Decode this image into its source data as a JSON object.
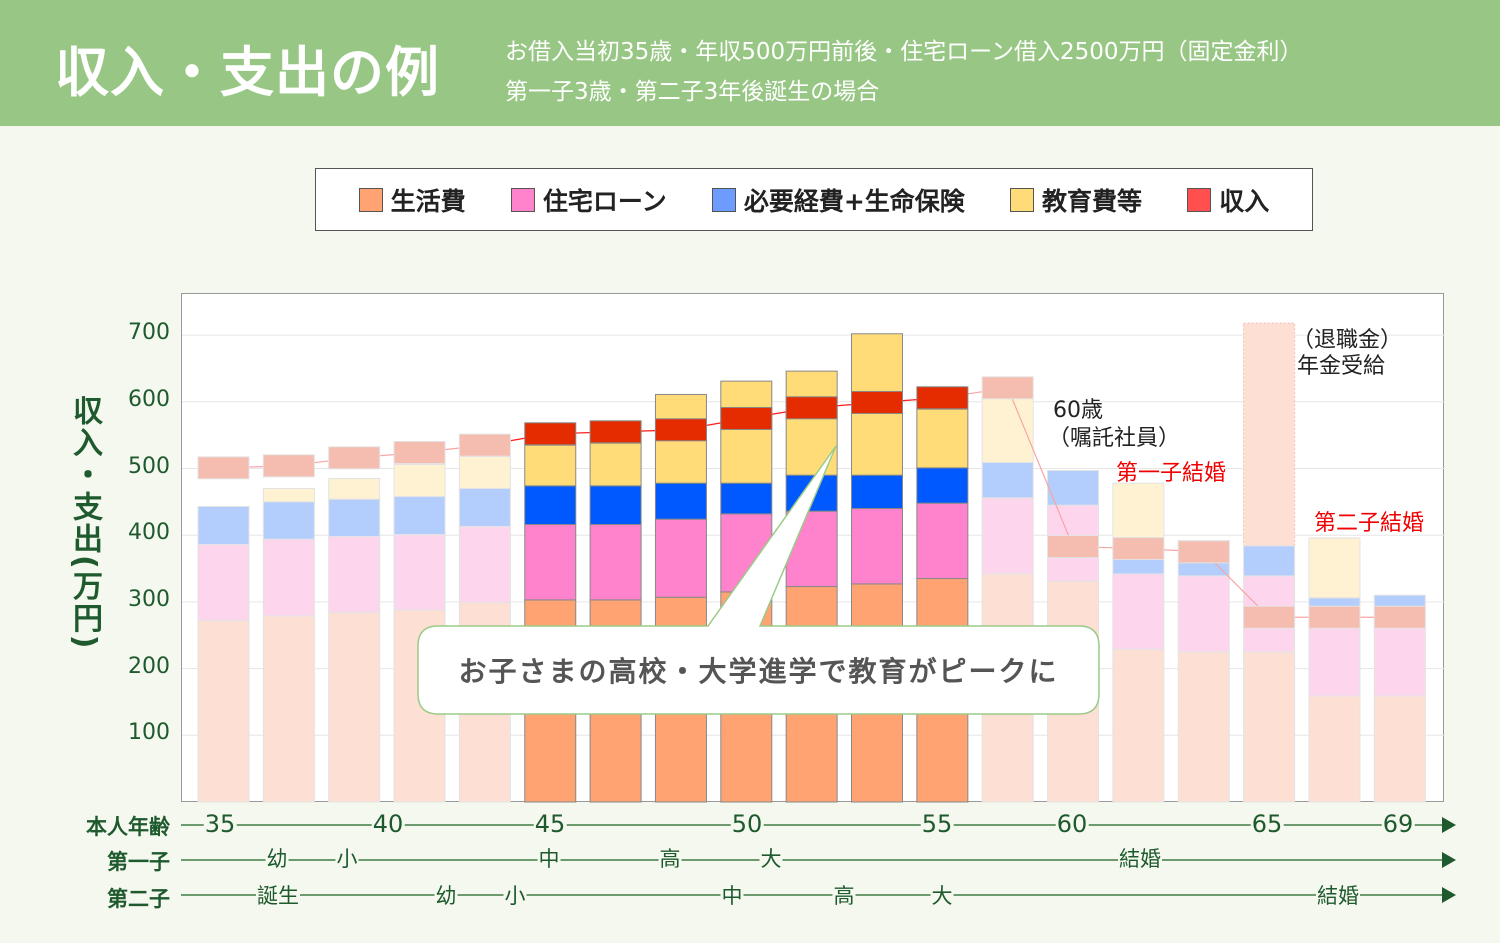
{
  "header": {
    "title": "収入・支出の例",
    "subtitle_1": "お借入当初35歳・年収500万円前後・住宅ローン借入2500万円（固定金利）",
    "subtitle_2": "第一子3歳・第二子3年後誕生の場合"
  },
  "legend": [
    {
      "label": "生活費",
      "color": "#FFA373"
    },
    {
      "label": "住宅ローン",
      "color": "#FF82CC"
    },
    {
      "label": "必要経費+生命保険",
      "color": "#6E9BFF"
    },
    {
      "label": "教育費等",
      "color": "#FFDC78"
    },
    {
      "label": "収入",
      "color": "#FF4F4F"
    }
  ],
  "callout": "お子さまの高校・大学進学で教育がピークに",
  "annotations": {
    "age60": "60歳",
    "age60_sub": "（嘱託社員）",
    "child1_marriage": "第一子結婚",
    "retire": "（退職金）",
    "pension": "年金受給",
    "child2_marriage": "第二子結婚"
  },
  "timeline": {
    "age_label": "本人年齢",
    "child1_label": "第一子",
    "child2_label": "第二子",
    "ages": [
      "35",
      "40",
      "45",
      "50",
      "55",
      "60",
      "65",
      "69"
    ],
    "child1": [
      "幼",
      "小",
      "中",
      "高",
      "大",
      "結婚"
    ],
    "child2": [
      "誕生",
      "幼",
      "小",
      "中",
      "高",
      "大",
      "結婚"
    ]
  },
  "chart_data": {
    "type": "bar",
    "stacked": true,
    "title": "収入・支出の例",
    "ylabel": "収入・支出(万円)",
    "ylim": [
      0,
      760
    ],
    "yticks": [
      "100",
      "200",
      "300",
      "400",
      "500",
      "600",
      "700"
    ],
    "grid": true,
    "series_names": [
      "生活費",
      "住宅ローン",
      "必要経費+生命保険",
      "教育費等",
      "収入"
    ],
    "highlighted_bars": [
      5,
      6,
      7,
      8,
      9,
      10,
      11
    ],
    "stack_tops_cumulative": [
      [
        272,
        386,
        443,
        443
      ],
      [
        279,
        394,
        450,
        470
      ],
      [
        284,
        398,
        454,
        485
      ],
      [
        288,
        401,
        458,
        506
      ],
      [
        299,
        413,
        470,
        518
      ],
      [
        303,
        416,
        474,
        535
      ],
      [
        303,
        416,
        474,
        538
      ],
      [
        307,
        424,
        478,
        611
      ],
      [
        315,
        432,
        478,
        631
      ],
      [
        323,
        436,
        490,
        646
      ],
      [
        327,
        440,
        490,
        702
      ],
      [
        335,
        448,
        501,
        589
      ],
      [
        342,
        456,
        509,
        605
      ],
      [
        331,
        445,
        497,
        497
      ],
      [
        229,
        342,
        365,
        478
      ],
      [
        225,
        339,
        392,
        392
      ],
      [
        225,
        339,
        384,
        384
      ],
      [
        159,
        293,
        306,
        396
      ],
      [
        159,
        293,
        310,
        310
      ]
    ],
    "income": [
      501,
      504,
      516,
      524,
      535,
      552,
      555,
      558,
      575,
      591,
      599,
      606,
      621,
      383,
      380,
      375,
      277,
      277,
      277
    ],
    "retirement_allowance_top": {
      "bar": 16,
      "value": 718
    }
  }
}
